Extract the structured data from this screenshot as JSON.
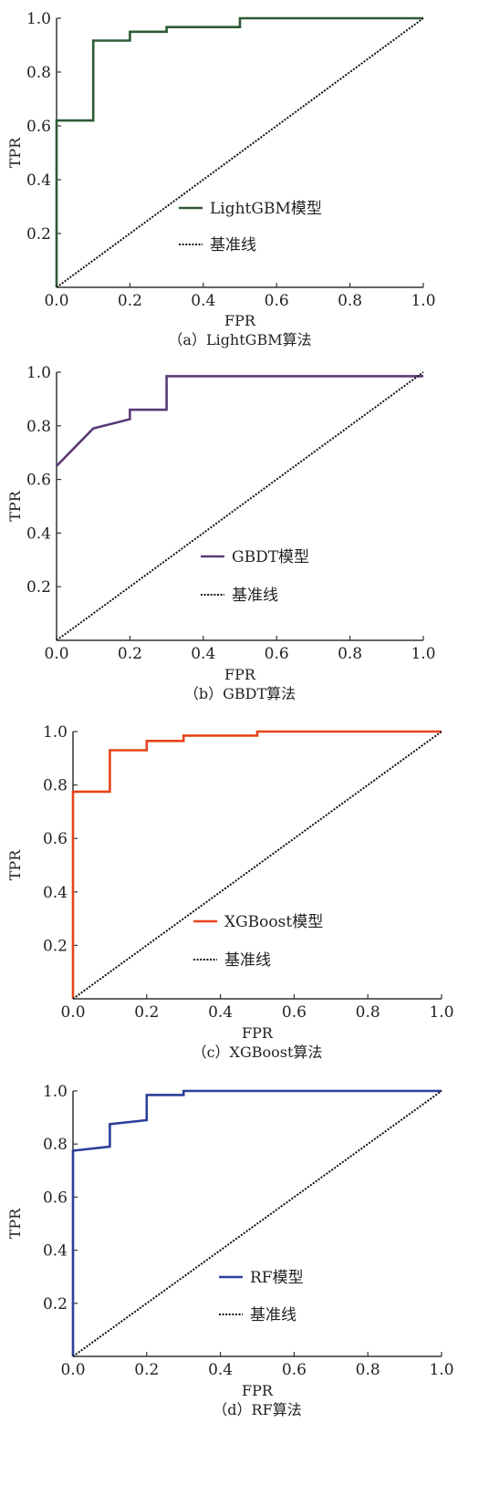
{
  "chart_data": [
    {
      "type": "line",
      "caption": "（a）LightGBM算法",
      "xlabel": "FPR",
      "ylabel": "TPR",
      "xlim": [
        0,
        1
      ],
      "ylim": [
        0,
        1
      ],
      "x_ticks": [
        "0.0",
        "0.2",
        "0.4",
        "0.6",
        "0.8",
        "1.0"
      ],
      "y_ticks": [
        "0.2",
        "0.4",
        "0.6",
        "0.8",
        "1.0"
      ],
      "legend_position": "center",
      "series": [
        {
          "name": "LightGBM模型",
          "color": "#2e5a36",
          "style": "solid",
          "x": [
            0,
            0,
            0.1,
            0.1,
            0.2,
            0.2,
            0.3,
            0.3,
            0.5,
            0.5,
            1.0
          ],
          "y": [
            0,
            0.62,
            0.62,
            0.917,
            0.917,
            0.95,
            0.95,
            0.967,
            0.967,
            1.0,
            1.0
          ]
        },
        {
          "name": "基准线",
          "color": "#111111",
          "style": "dotted",
          "x": [
            0,
            1
          ],
          "y": [
            0,
            1
          ]
        }
      ]
    },
    {
      "type": "line",
      "caption": "（b）GBDT算法",
      "xlabel": "FPR",
      "ylabel": "TPR",
      "xlim": [
        0,
        1
      ],
      "ylim": [
        0,
        1
      ],
      "x_ticks": [
        "0.0",
        "0.2",
        "0.4",
        "0.6",
        "0.8",
        "1.0"
      ],
      "y_ticks": [
        "0.2",
        "0.4",
        "0.6",
        "0.8",
        "1.0"
      ],
      "legend_position": "center",
      "series": [
        {
          "name": "GBDT模型",
          "color": "#5a3a78",
          "style": "solid",
          "x": [
            0,
            0.1,
            0.2,
            0.2,
            0.3,
            0.3,
            1.0
          ],
          "y": [
            0.65,
            0.79,
            0.825,
            0.86,
            0.86,
            0.985,
            0.985
          ]
        },
        {
          "name": "基准线",
          "color": "#111111",
          "style": "dotted",
          "x": [
            0,
            1
          ],
          "y": [
            0,
            1
          ]
        }
      ]
    },
    {
      "type": "line",
      "caption": "（c）XGBoost算法",
      "xlabel": "FPR",
      "ylabel": "TPR",
      "xlim": [
        0,
        1
      ],
      "ylim": [
        0,
        1
      ],
      "x_ticks": [
        "0.0",
        "0.2",
        "0.4",
        "0.6",
        "0.8",
        "1.0"
      ],
      "y_ticks": [
        "0.2",
        "0.4",
        "0.6",
        "0.8",
        "1.0"
      ],
      "legend_position": "center",
      "series": [
        {
          "name": "XGBoost模型",
          "color": "#e8431c",
          "style": "solid",
          "x": [
            0,
            0,
            0.1,
            0.1,
            0.2,
            0.2,
            0.3,
            0.3,
            0.5,
            0.5,
            1.0
          ],
          "y": [
            0,
            0.775,
            0.775,
            0.93,
            0.93,
            0.965,
            0.965,
            0.985,
            0.985,
            1.0,
            1.0
          ]
        },
        {
          "name": "基准线",
          "color": "#111111",
          "style": "dotted",
          "x": [
            0,
            1
          ],
          "y": [
            0,
            1
          ]
        }
      ]
    },
    {
      "type": "line",
      "caption": "（d）RF算法",
      "xlabel": "FPR",
      "ylabel": "TPR",
      "xlim": [
        0,
        1
      ],
      "ylim": [
        0,
        1
      ],
      "x_ticks": [
        "0.0",
        "0.2",
        "0.4",
        "0.6",
        "0.8",
        "1.0"
      ],
      "y_ticks": [
        "0.2",
        "0.4",
        "0.6",
        "0.8",
        "1.0"
      ],
      "legend_position": "center",
      "series": [
        {
          "name": "RF模型",
          "color": "#2c3f9a",
          "style": "solid",
          "x": [
            0,
            0,
            0.1,
            0.1,
            0.2,
            0.2,
            0.3,
            0.3,
            1.0
          ],
          "y": [
            0,
            0.775,
            0.79,
            0.875,
            0.89,
            0.985,
            0.985,
            1.0,
            1.0
          ]
        },
        {
          "name": "基准线",
          "color": "#111111",
          "style": "dotted",
          "x": [
            0,
            1
          ],
          "y": [
            0,
            1
          ]
        }
      ]
    }
  ]
}
